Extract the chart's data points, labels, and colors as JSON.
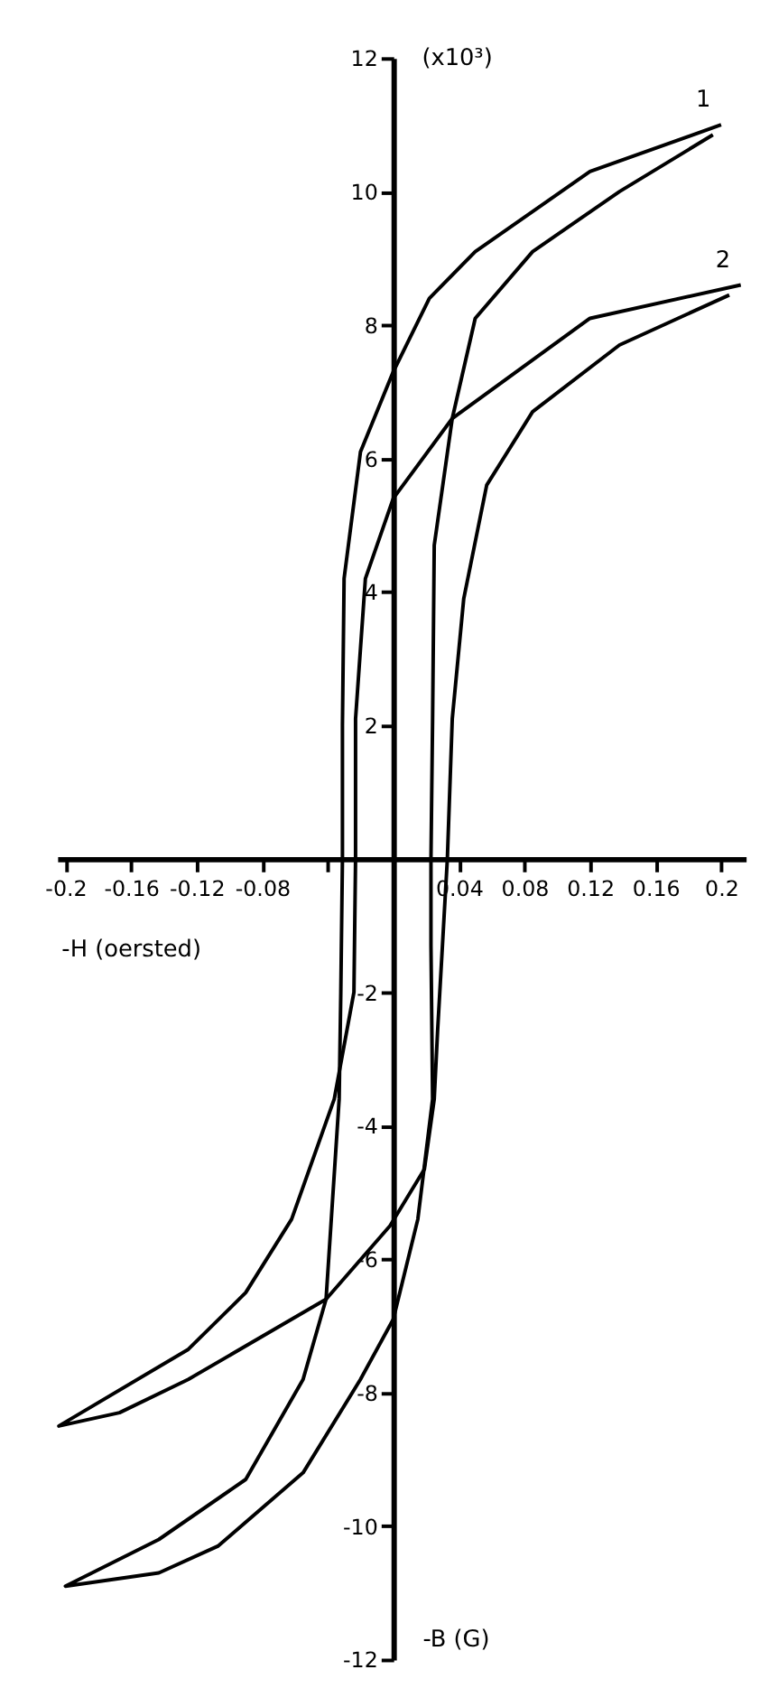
{
  "chart_data": {
    "type": "line",
    "xlabel": "-H (oersted)",
    "ylabel": "-B (G)",
    "annotations": [
      "(x10³)"
    ],
    "xlim": [
      -0.205,
      0.215
    ],
    "ylim": [
      -12,
      12
    ],
    "xticks": [
      -0.2,
      -0.16,
      -0.12,
      -0.08,
      {
        "value": -0.04,
        "label": null
      },
      0.04,
      0.08,
      0.12,
      0.16,
      0.2
    ],
    "yticks": [
      -12,
      -10,
      -8,
      -6,
      -4,
      -2,
      2,
      4,
      6,
      8,
      10,
      12
    ],
    "grid": false,
    "marker": "none",
    "line_style": "solid",
    "series": [
      {
        "name": "1",
        "color": "#000000",
        "x": [
          0.2,
          0.12,
          0.05,
          0.022,
          0,
          -0.02,
          -0.03,
          -0.031,
          -0.031,
          -0.032,
          -0.033,
          -0.041,
          -0.055,
          -0.09,
          -0.143,
          -0.2,
          -0.143,
          -0.107,
          -0.055,
          -0.02,
          0,
          0.015,
          0.024,
          0.023,
          0.023,
          0.024,
          0.025,
          0.036,
          0.05,
          0.085,
          0.138,
          0.195
        ],
        "values": [
          11.0,
          10.3,
          9.1,
          8.4,
          7.3,
          6.1,
          4.2,
          2,
          0,
          -2,
          -3.6,
          -6.6,
          -7.8,
          -9.3,
          -10.2,
          -10.9,
          -10.7,
          -10.3,
          -9.2,
          -7.8,
          -6.9,
          -5.4,
          -3.6,
          -1.3,
          0,
          2.1,
          4.7,
          6.6,
          8.1,
          9.1,
          10.0,
          10.85
        ]
      },
      {
        "name": "2",
        "color": "#000000",
        "x": [
          0.212,
          0.12,
          0.036,
          0,
          -0.017,
          -0.023,
          -0.023,
          -0.024,
          -0.036,
          -0.062,
          -0.09,
          -0.125,
          -0.204,
          -0.167,
          -0.125,
          -0.041,
          -0.002,
          0.019,
          0.025,
          0.027,
          0.033,
          0.036,
          0.043,
          0.057,
          0.085,
          0.138,
          0.205
        ],
        "values": [
          8.6,
          8.1,
          6.6,
          5.4,
          4.2,
          2.1,
          0,
          -2,
          -3.6,
          -5.4,
          -6.5,
          -7.35,
          -8.5,
          -8.3,
          -7.8,
          -6.6,
          -5.5,
          -4.65,
          -3.6,
          -2.6,
          0,
          2.1,
          3.9,
          5.6,
          6.7,
          7.7,
          8.45
        ]
      }
    ]
  }
}
